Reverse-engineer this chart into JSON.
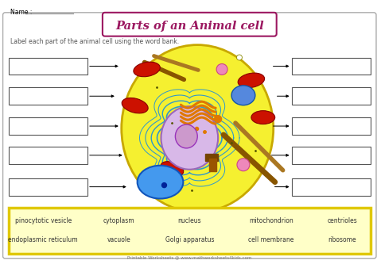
{
  "title": "Parts of an Animal cell",
  "title_color": "#9b1760",
  "subtitle": "Label each part of the animal cell using the word bank.",
  "name_label": "Name :",
  "bg_color": "#ffffff",
  "cell_color": "#f5f030",
  "cell_outline": "#c8a800",
  "footer": "Printable Worksheets @ www.mathworksheets4kids.com",
  "word_bank_bg": "#ffffc8",
  "word_bank_border": "#e0c800",
  "row1": [
    "pinocytotic vesicle",
    "cytoplasm",
    "nucleus",
    "mitochondrion",
    "centrioles"
  ],
  "row2": [
    "endoplasmic reticulum",
    "vacuole",
    "Golgi apparatus",
    "cell membrane",
    "ribosome"
  ]
}
